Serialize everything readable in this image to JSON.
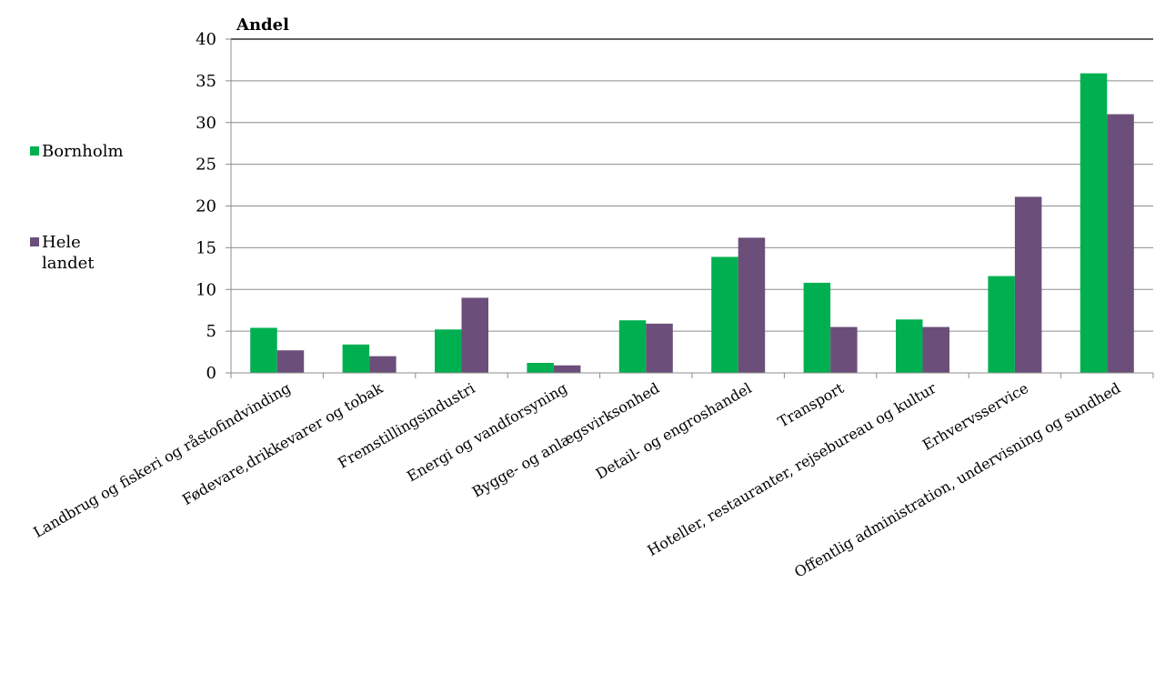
{
  "chart_data": {
    "type": "bar",
    "ylabel": "Andel",
    "ylim": [
      0,
      40
    ],
    "yticks": [
      0,
      5,
      10,
      15,
      20,
      25,
      30,
      35,
      40
    ],
    "grid": true,
    "legend_position": "left",
    "categories": [
      "Landbrug og fiskeri og råstofindvinding",
      "Fødevare,drikkevarer og tobak",
      "Fremstillingsindustri",
      "Energi og vandforsyning",
      "Bygge- og anlægsvirksonhed",
      "Detail- og engroshandel",
      "Transport",
      "Hoteller, restauranter, rejsebureau og kultur",
      "Erhvervsservice",
      "Offentlig administration, undervisning og sundhed"
    ],
    "series": [
      {
        "name": "Bornholm",
        "legend_lines": [
          "Bornholm"
        ],
        "color": "#00b050",
        "values": [
          5.4,
          3.4,
          5.2,
          1.2,
          6.3,
          13.9,
          10.8,
          6.4,
          11.6,
          35.9
        ]
      },
      {
        "name": "Hele landet",
        "legend_lines": [
          "Hele",
          "landet"
        ],
        "color": "#6b4f7a",
        "values": [
          2.7,
          2.0,
          9.0,
          0.9,
          5.9,
          16.2,
          5.5,
          5.5,
          21.1,
          31.0
        ]
      }
    ]
  }
}
